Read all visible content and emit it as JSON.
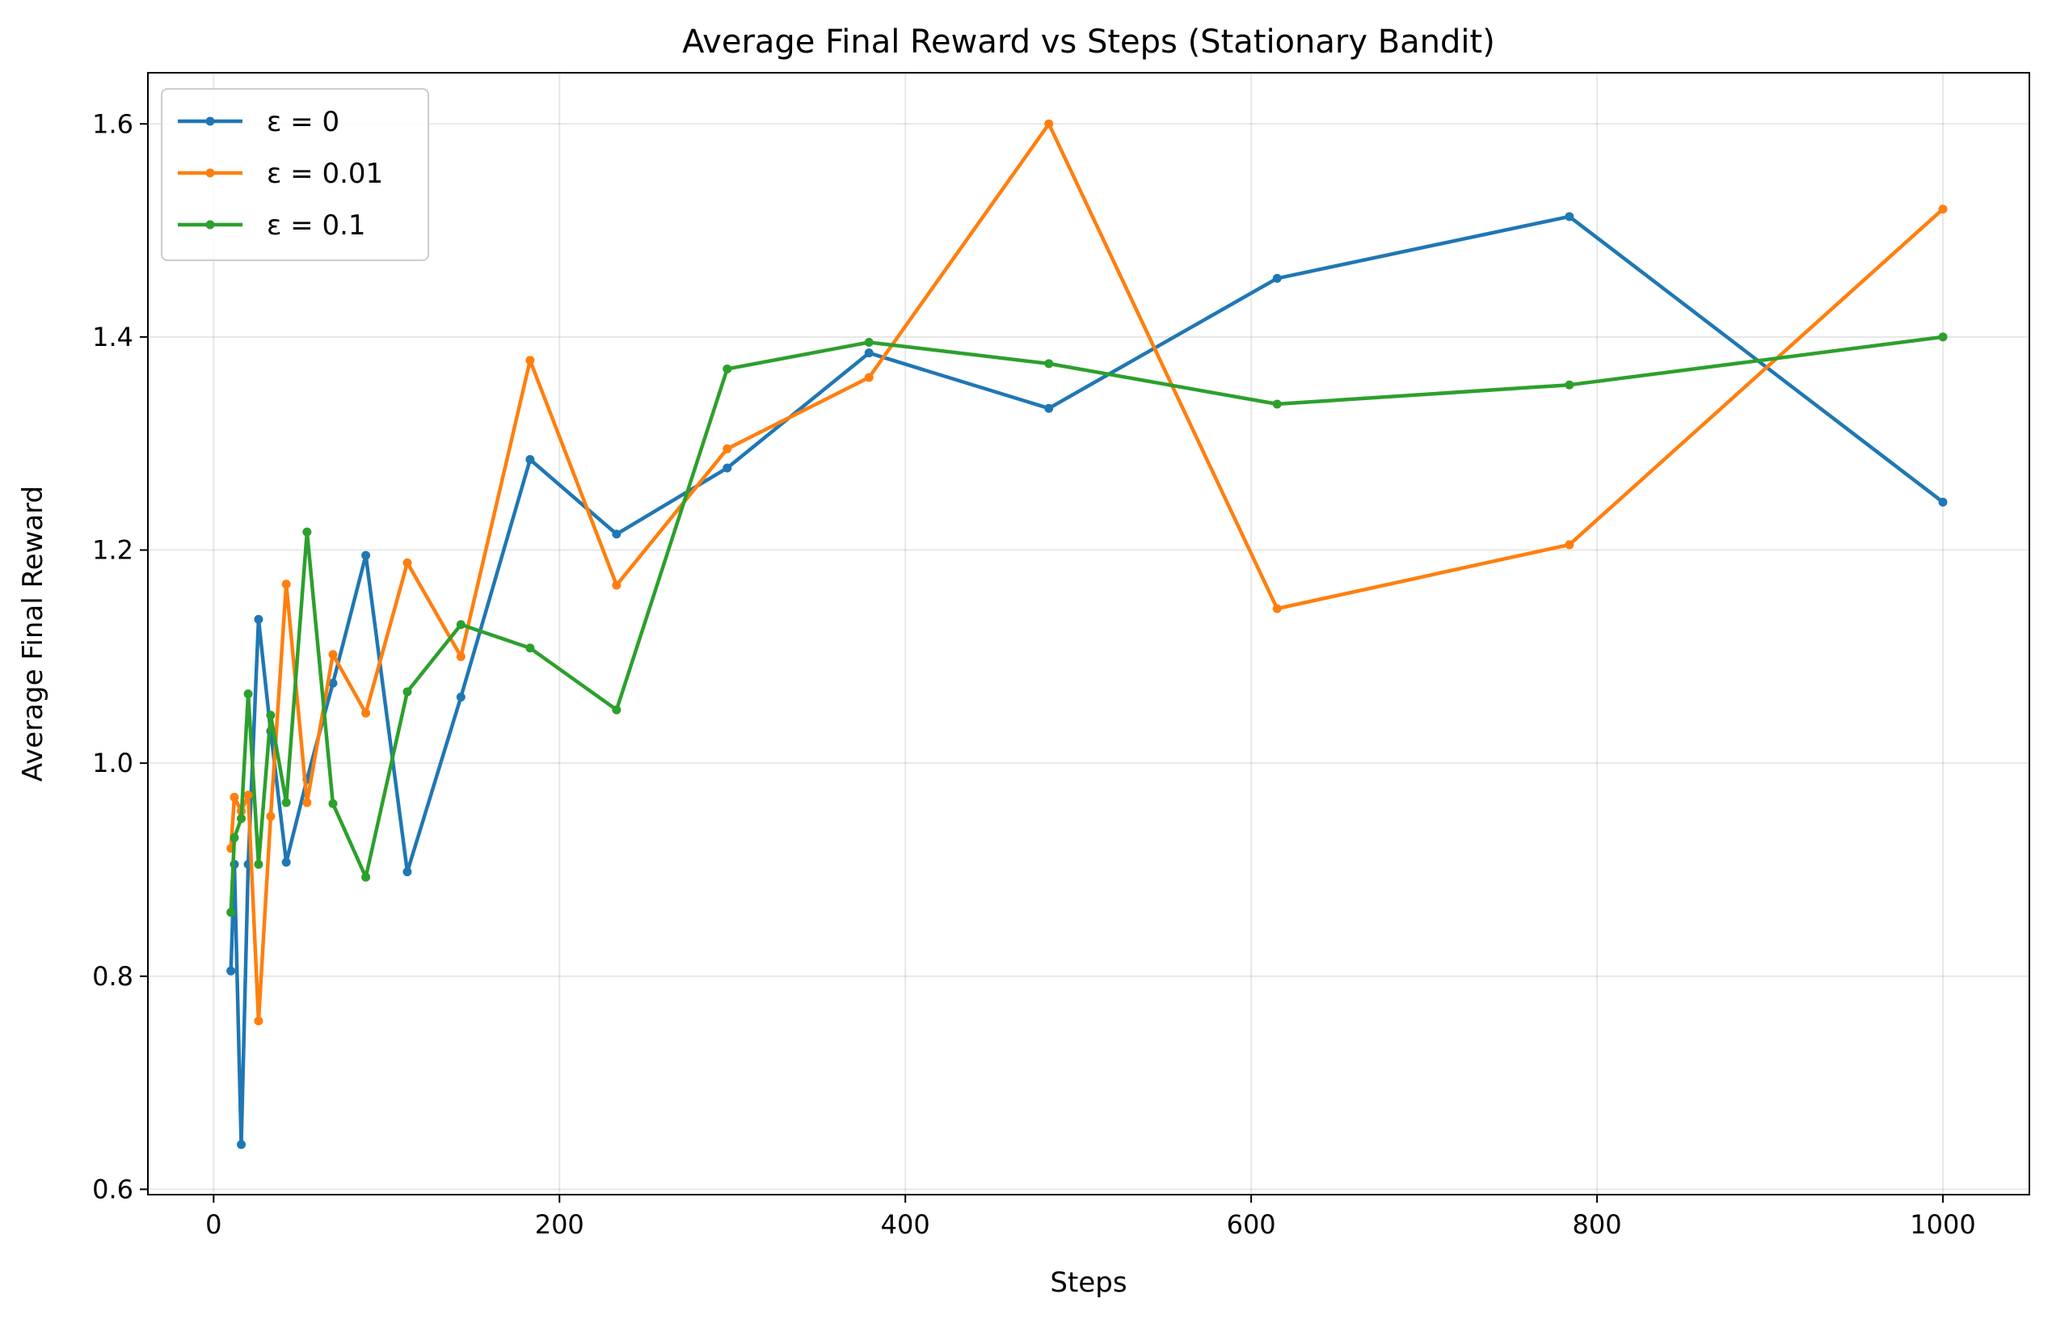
{
  "chart_data": {
    "type": "line",
    "title": "Average Final Reward vs Steps (Stationary Bandit)",
    "xlabel": "Steps",
    "ylabel": "Average Final Reward",
    "xlim": [
      -38,
      1050
    ],
    "ylim": [
      0.595,
      1.648
    ],
    "x_ticks": [
      0,
      200,
      400,
      600,
      800,
      1000
    ],
    "x_tick_labels": [
      "0",
      "200",
      "400",
      "600",
      "800",
      "1000"
    ],
    "y_ticks": [
      0.6,
      0.8,
      1.0,
      1.2,
      1.4,
      1.6
    ],
    "y_tick_labels": [
      "0.6",
      "0.8",
      "1.0",
      "1.2",
      "1.4",
      "1.6"
    ],
    "grid": true,
    "legend_position": "top-left",
    "series": [
      {
        "name": "ε = 0",
        "color": "#1f77b4",
        "x": [
          10,
          12,
          16,
          20,
          26,
          33,
          42,
          54,
          69,
          88,
          112,
          143,
          183,
          233,
          297,
          379,
          483,
          615,
          784,
          1000
        ],
        "y": [
          0.805,
          0.905,
          0.642,
          0.905,
          1.135,
          1.03,
          0.907,
          0.985,
          1.075,
          1.195,
          0.898,
          1.062,
          1.285,
          1.215,
          1.277,
          1.385,
          1.333,
          1.455,
          1.513,
          1.245
        ]
      },
      {
        "name": "ε = 0.01",
        "color": "#ff7f0e",
        "x": [
          10,
          12,
          16,
          20,
          26,
          33,
          42,
          54,
          69,
          88,
          112,
          143,
          183,
          233,
          297,
          379,
          483,
          615,
          784,
          1000
        ],
        "y": [
          0.92,
          0.968,
          0.955,
          0.97,
          0.758,
          0.95,
          1.168,
          0.963,
          1.102,
          1.047,
          1.188,
          1.1,
          1.378,
          1.167,
          1.295,
          1.362,
          1.6,
          1.145,
          1.205,
          1.52
        ]
      },
      {
        "name": "ε = 0.1",
        "color": "#2ca02c",
        "x": [
          10,
          12,
          16,
          20,
          26,
          33,
          42,
          54,
          69,
          88,
          112,
          143,
          183,
          233,
          297,
          379,
          483,
          615,
          784,
          1000
        ],
        "y": [
          0.86,
          0.93,
          0.948,
          1.065,
          0.905,
          1.045,
          0.963,
          1.217,
          0.962,
          0.893,
          1.067,
          1.13,
          1.108,
          1.05,
          1.37,
          1.395,
          1.375,
          1.337,
          1.355,
          1.4
        ]
      }
    ]
  }
}
